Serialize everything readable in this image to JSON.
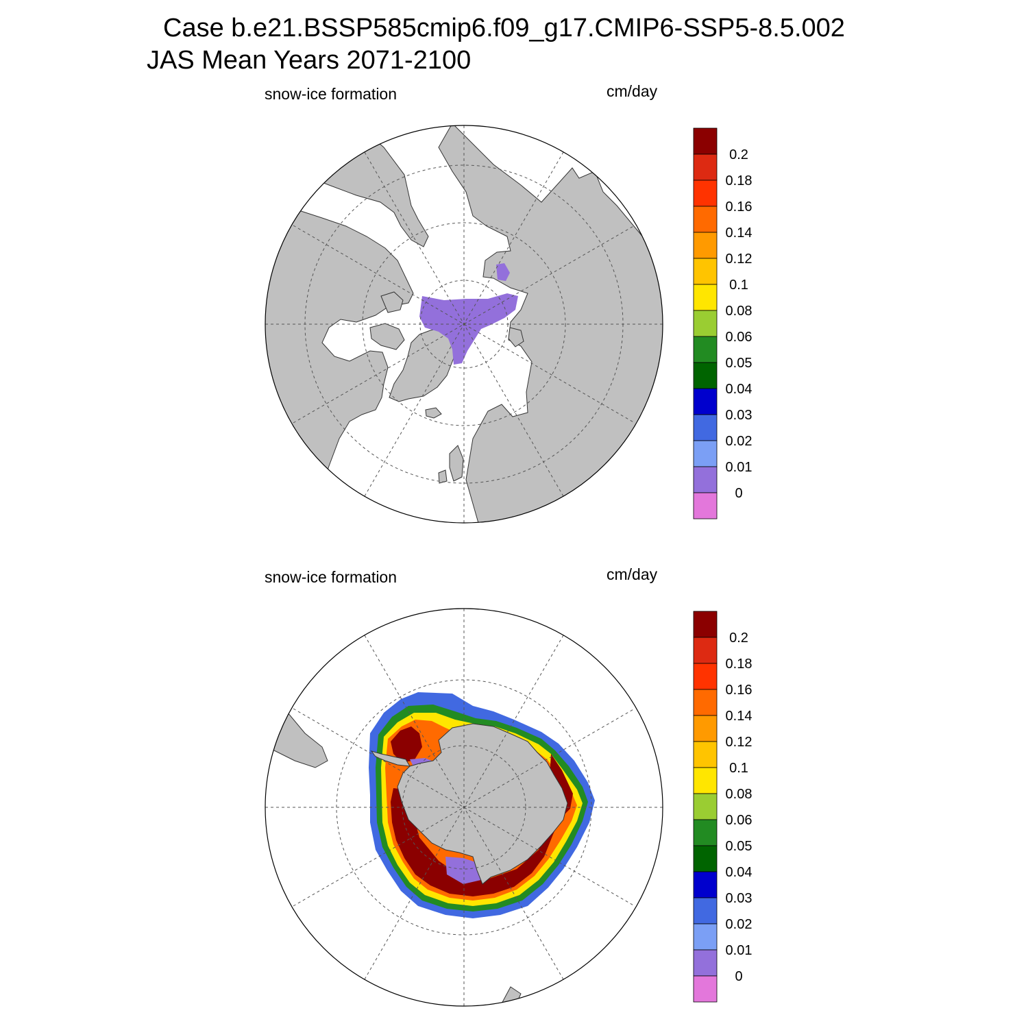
{
  "figure": {
    "title_line1": "Case b.e21.BSSP585cmip6.f09_g17.CMIP6-SSP5-8.5.002",
    "title_line2": "JAS Mean   Years 2071-2100"
  },
  "panels": [
    {
      "id": "north",
      "hemisphere": "Northern Hemisphere",
      "variable": "snow-ice formation",
      "units": "cm/day"
    },
    {
      "id": "south",
      "hemisphere": "Southern Hemisphere",
      "variable": "snow-ice formation",
      "units": "cm/day"
    }
  ],
  "colorbar": {
    "labels": [
      "0",
      "0.01",
      "0.02",
      "0.03",
      "0.04",
      "0.05",
      "0.06",
      "0.08",
      "0.1",
      "0.12",
      "0.14",
      "0.16",
      "0.18",
      "0.2"
    ],
    "colors": [
      "#e377db",
      "#9370db",
      "#7b9ff5",
      "#4169e1",
      "#0000cd",
      "#006400",
      "#228b22",
      "#9acd32",
      "#ffe600",
      "#ffc400",
      "#ff9a00",
      "#ff6a00",
      "#ff3300",
      "#dd2a12",
      "#8b0000"
    ]
  },
  "colors": {
    "land": "#c0c0c0",
    "ocean": "#ffffff",
    "grid": "#555555",
    "outline": "#333333"
  }
}
